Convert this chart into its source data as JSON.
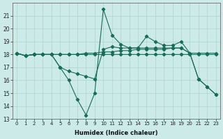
{
  "xlabel": "Humidex (Indice chaleur)",
  "xlim_min": -0.5,
  "xlim_max": 23.5,
  "ylim_min": 13,
  "ylim_max": 22,
  "yticks": [
    13,
    14,
    15,
    16,
    17,
    18,
    19,
    20,
    21
  ],
  "xticks": [
    0,
    1,
    2,
    3,
    4,
    5,
    6,
    7,
    8,
    9,
    10,
    11,
    12,
    13,
    14,
    15,
    16,
    17,
    18,
    19,
    20,
    21,
    22,
    23
  ],
  "bg_color": "#cceae7",
  "grid_color": "#aad4d0",
  "line_color": "#1a6b5a",
  "line1_x": [
    0,
    1,
    2,
    3,
    4,
    5,
    6,
    7,
    8,
    9,
    10,
    11,
    12,
    13,
    14,
    15,
    16,
    17,
    18,
    19,
    20,
    21,
    22,
    23
  ],
  "line1_y": [
    18.1,
    17.9,
    18.0,
    18.0,
    18.0,
    18.0,
    18.0,
    18.0,
    18.0,
    18.0,
    18.0,
    18.0,
    18.0,
    18.0,
    18.0,
    18.0,
    18.0,
    18.0,
    18.0,
    18.0,
    18.0,
    18.0,
    18.0,
    18.0
  ],
  "line2_x": [
    0,
    1,
    2,
    3,
    4,
    5,
    6,
    7,
    8,
    9,
    10,
    11,
    12,
    13,
    14,
    15,
    16,
    17,
    18,
    19,
    20,
    21,
    22,
    23
  ],
  "line2_y": [
    18.1,
    17.9,
    18.0,
    18.0,
    18.0,
    17.0,
    16.7,
    16.5,
    16.3,
    16.1,
    18.4,
    18.6,
    18.5,
    18.5,
    18.5,
    19.4,
    19.0,
    18.7,
    18.7,
    19.0,
    18.1,
    18.1,
    18.1,
    18.1
  ],
  "line3_x": [
    0,
    1,
    2,
    3,
    4,
    5,
    6,
    7,
    8,
    9,
    10,
    11,
    12,
    13,
    14,
    15,
    16,
    17,
    18,
    19,
    20,
    21,
    22,
    23
  ],
  "line3_y": [
    18.1,
    17.9,
    18.0,
    18.0,
    18.0,
    17.0,
    16.0,
    14.5,
    13.3,
    15.0,
    21.5,
    19.5,
    18.8,
    18.5,
    18.5,
    18.5,
    18.5,
    18.5,
    18.5,
    18.5,
    18.1,
    16.1,
    15.5,
    14.9
  ],
  "line4_x": [
    0,
    1,
    2,
    3,
    4,
    5,
    6,
    7,
    8,
    9,
    10,
    11,
    12,
    13,
    14,
    15,
    16,
    17,
    18,
    19,
    20,
    21,
    22,
    23
  ],
  "line4_y": [
    18.1,
    17.9,
    18.0,
    18.0,
    18.0,
    18.0,
    18.0,
    18.0,
    18.1,
    18.1,
    18.2,
    18.2,
    18.3,
    18.3,
    18.4,
    18.4,
    18.4,
    18.4,
    18.5,
    18.5,
    18.1,
    16.1,
    15.5,
    14.9
  ]
}
